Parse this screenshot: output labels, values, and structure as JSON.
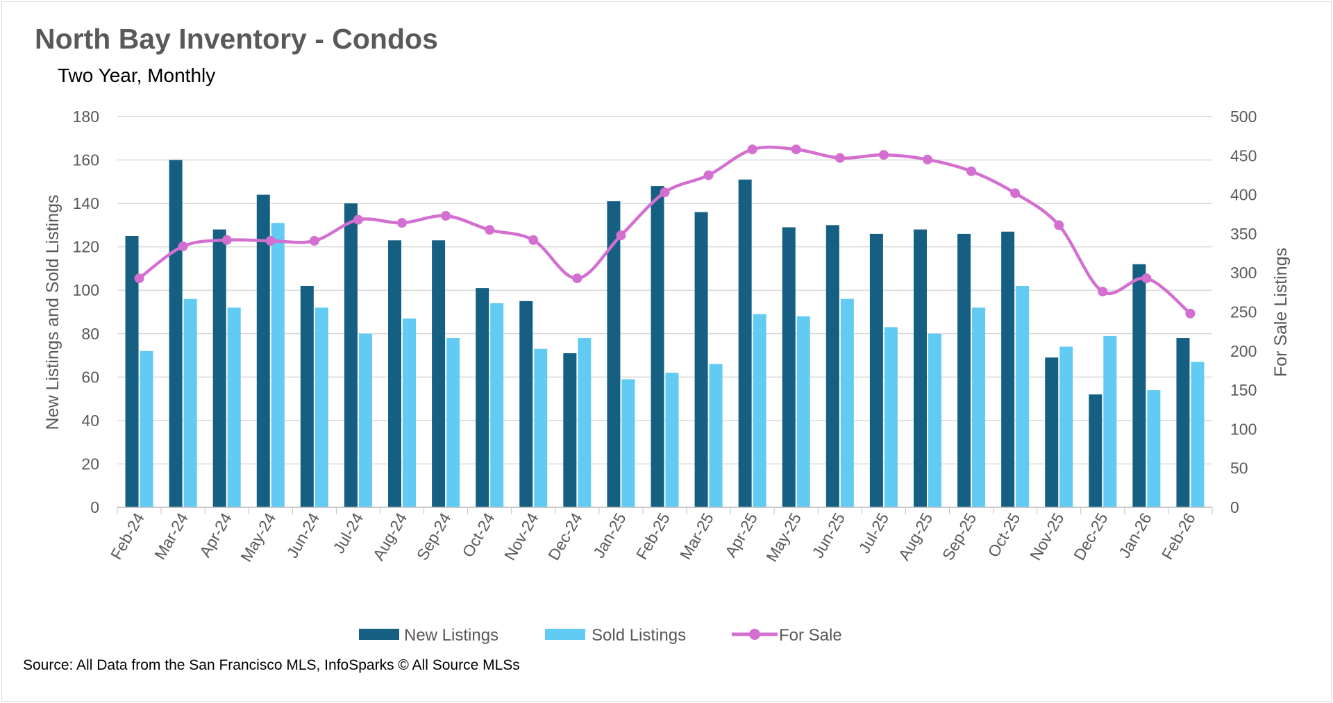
{
  "chart_data": {
    "type": "bar+line",
    "title": "North Bay Inventory - Condos",
    "subtitle": "Two Year, Monthly",
    "ylabel": "New Listings and Sold Listings",
    "y2label": "For Sale Listings",
    "ylim": [
      0,
      180
    ],
    "yticks": [
      0,
      20,
      40,
      60,
      80,
      100,
      120,
      140,
      160,
      180
    ],
    "y2lim": [
      0,
      500
    ],
    "y2ticks": [
      0,
      50,
      100,
      150,
      200,
      250,
      300,
      350,
      400,
      450,
      500
    ],
    "grid": true,
    "legend_position": "bottom",
    "categories": [
      "Feb-24",
      "Mar-24",
      "Apr-24",
      "May-24",
      "Jun-24",
      "Jul-24",
      "Aug-24",
      "Sep-24",
      "Oct-24",
      "Nov-24",
      "Dec-24",
      "Jan-25",
      "Feb-25",
      "Mar-25",
      "Apr-25",
      "May-25",
      "Jun-25",
      "Jul-25",
      "Aug-25",
      "Sep-25",
      "Oct-25",
      "Nov-25",
      "Dec-25",
      "Jan-26",
      "Feb-26"
    ],
    "series": [
      {
        "name": "New Listings",
        "type": "bar",
        "axis": "left",
        "color": "#156082",
        "values": [
          125,
          160,
          128,
          144,
          102,
          140,
          123,
          123,
          101,
          95,
          71,
          141,
          148,
          136,
          151,
          129,
          130,
          126,
          128,
          126,
          127,
          69,
          52,
          112,
          78
        ]
      },
      {
        "name": "Sold Listings",
        "type": "bar",
        "axis": "left",
        "color": "#61cbf3",
        "values": [
          72,
          96,
          92,
          131,
          92,
          80,
          87,
          78,
          94,
          73,
          78,
          59,
          62,
          66,
          89,
          88,
          96,
          83,
          80,
          92,
          102,
          74,
          79,
          54,
          67
        ]
      },
      {
        "name": "For Sale",
        "type": "line",
        "axis": "right",
        "color": "#d36fd0",
        "values": [
          293,
          334,
          342,
          341,
          341,
          368,
          364,
          373,
          355,
          342,
          293,
          348,
          403,
          425,
          458,
          458,
          447,
          451,
          445,
          430,
          402,
          361,
          276,
          293,
          248
        ]
      }
    ]
  },
  "source": "Source: All Data from the San Francisco MLS, InfoSparks © All Source MLSs"
}
